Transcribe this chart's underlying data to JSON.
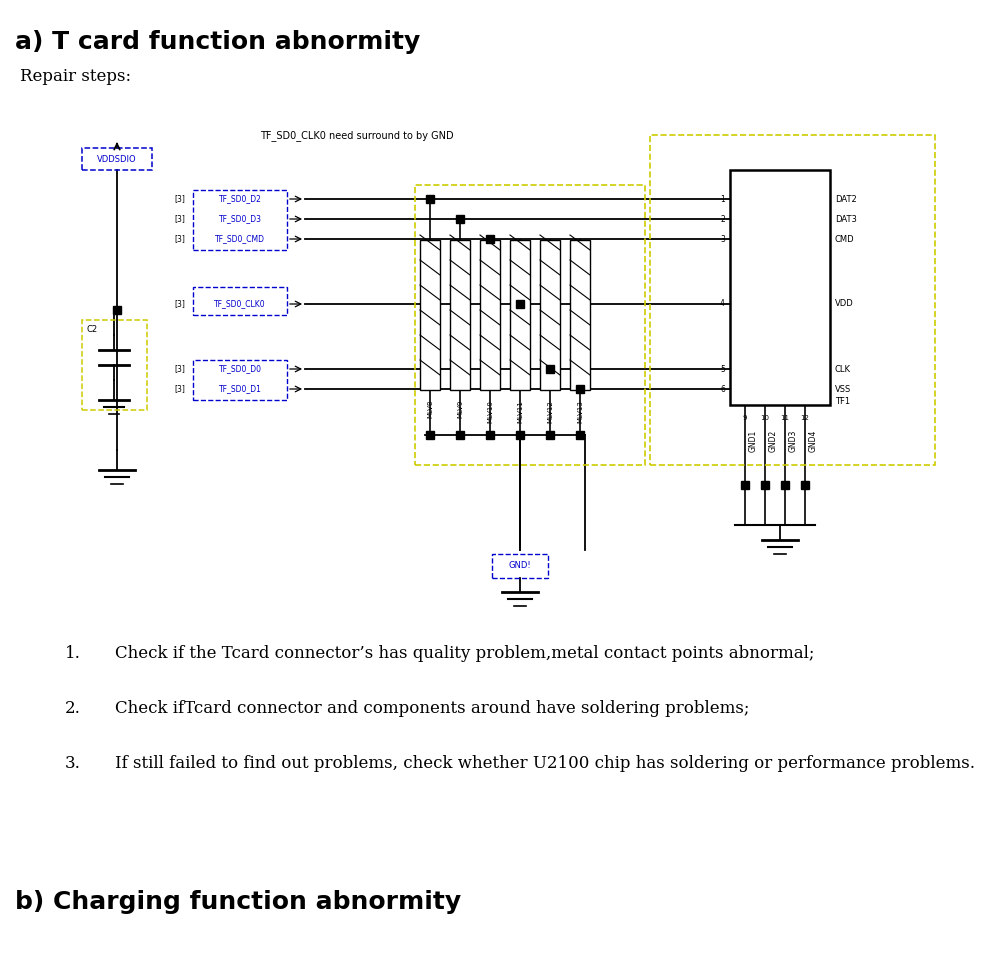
{
  "title_a": "a) T card function abnormity",
  "title_b": "b) Charging function abnormity",
  "repair_steps_label": "Repair steps:",
  "steps": [
    "Check if the Tcard connector’s has quality problem,metal contact points abnormal;",
    "Check ifTcard connector and components around have soldering problems;",
    "If still failed to find out problems, check whether U2100 chip has soldering or performance problems."
  ],
  "diagram_annotation": "TF_SD0_CLK0 need surround to by GND",
  "bg_color": "#ffffff",
  "title_a_fontsize": 18,
  "title_b_fontsize": 18,
  "repair_fontsize": 12,
  "steps_fontsize": 12,
  "blue": "#0000cc",
  "yellow": "#cccc00",
  "black": "#000000"
}
